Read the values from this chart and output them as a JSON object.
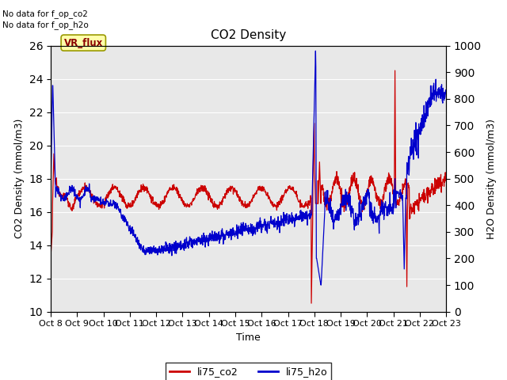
{
  "title": "CO2 Density",
  "xlabel": "Time",
  "ylabel_left": "CO2 Density (mmol/m3)",
  "ylabel_right": "H2O Density (mmol/m3)",
  "text_no_data": [
    "No data for f_op_co2",
    "No data for f_op_h2o"
  ],
  "label_vr_flux": "VR_flux",
  "ylim_left": [
    10,
    26
  ],
  "ylim_right": [
    0,
    1000
  ],
  "yticks_left": [
    10,
    12,
    14,
    16,
    18,
    20,
    22,
    24,
    26
  ],
  "yticks_right": [
    0,
    100,
    200,
    300,
    400,
    500,
    600,
    700,
    800,
    900,
    1000
  ],
  "xtick_labels": [
    "Oct 8",
    "Oct 9",
    "Oct 10",
    "Oct 11",
    "Oct 12",
    "Oct 13",
    "Oct 14",
    "Oct 15",
    "Oct 16",
    "Oct 17",
    "Oct 18",
    "Oct 19",
    "Oct 20",
    "Oct 21",
    "Oct 22",
    "Oct 23"
  ],
  "bg_color": "#e8e8e8",
  "line_co2_color": "#cc0000",
  "line_h2o_color": "#0000cc",
  "legend_items": [
    {
      "label": "li75_co2",
      "color": "#cc0000"
    },
    {
      "label": "li75_h2o",
      "color": "#0000cc"
    }
  ],
  "grid_color": "#ffffff",
  "title_fontsize": 11,
  "axis_fontsize": 9,
  "tick_fontsize": 8
}
